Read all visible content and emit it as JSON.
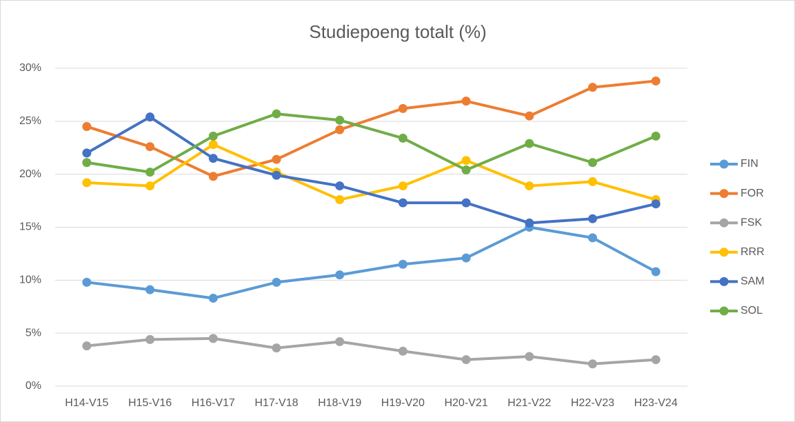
{
  "chart_data": {
    "type": "line",
    "title": "Studiepoeng totalt (%)",
    "categories": [
      "H14-V15",
      "H15-V16",
      "H16-V17",
      "H17-V18",
      "H18-V19",
      "H19-V20",
      "H20-V21",
      "H21-V22",
      "H22-V23",
      "H23-V24"
    ],
    "series": [
      {
        "name": "FIN",
        "color": "#5b9bd5",
        "values": [
          9.8,
          9.1,
          8.3,
          9.8,
          10.5,
          11.5,
          12.1,
          15.0,
          14.0,
          10.8
        ]
      },
      {
        "name": "FOR",
        "color": "#ed7d31",
        "values": [
          24.5,
          22.6,
          19.8,
          21.4,
          24.2,
          26.2,
          26.9,
          25.5,
          28.2,
          28.8
        ]
      },
      {
        "name": "FSK",
        "color": "#a5a5a5",
        "values": [
          3.8,
          4.4,
          4.5,
          3.6,
          4.2,
          3.3,
          2.5,
          2.8,
          2.1,
          2.5
        ]
      },
      {
        "name": "RRR",
        "color": "#ffc000",
        "values": [
          19.2,
          18.9,
          22.8,
          20.2,
          17.6,
          18.9,
          21.3,
          18.9,
          19.3,
          17.6
        ]
      },
      {
        "name": "SAM",
        "color": "#4472c4",
        "values": [
          22.0,
          25.4,
          21.5,
          19.9,
          18.9,
          17.3,
          17.3,
          15.4,
          15.8,
          17.2
        ]
      },
      {
        "name": "SOL",
        "color": "#70ad47",
        "values": [
          21.1,
          20.2,
          23.6,
          25.7,
          25.1,
          23.4,
          20.4,
          22.9,
          21.1,
          23.6
        ]
      }
    ],
    "ylim": [
      0,
      30
    ],
    "yticks": [
      {
        "value": 0,
        "label": "0%"
      },
      {
        "value": 5,
        "label": "5%"
      },
      {
        "value": 10,
        "label": "10%"
      },
      {
        "value": 15,
        "label": "15%"
      },
      {
        "value": 20,
        "label": "20%"
      },
      {
        "value": 25,
        "label": "25%"
      },
      {
        "value": 30,
        "label": "30%"
      }
    ],
    "grid": true,
    "legend": "right"
  }
}
